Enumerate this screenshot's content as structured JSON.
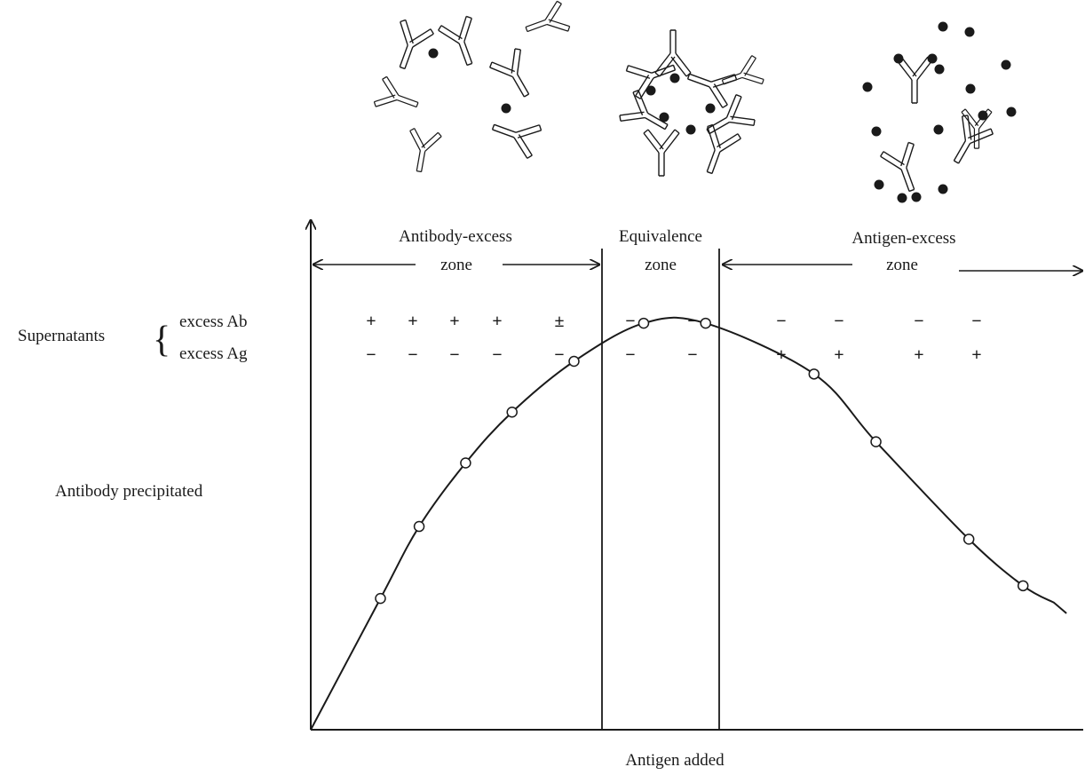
{
  "zones": [
    {
      "id": "antibody-excess",
      "line1": "Antibody-excess",
      "line2": "zone"
    },
    {
      "id": "equivalence",
      "line1": "Equivalence",
      "line2": "zone"
    },
    {
      "id": "antigen-excess",
      "line1": "Antigen-excess",
      "line2": "zone"
    }
  ],
  "supernatants": {
    "label": "Supernatants",
    "brace": "{",
    "rows": [
      {
        "label": "excess Ab",
        "signs": [
          "+",
          "+",
          "+",
          "+",
          "±",
          "−",
          "−",
          "−",
          "−",
          "−",
          "−"
        ]
      },
      {
        "label": "excess Ag",
        "signs": [
          "−",
          "−",
          "−",
          "−",
          "−",
          "−",
          "−",
          "+",
          "+",
          "+",
          "+"
        ]
      }
    ]
  },
  "axes": {
    "y_label": "Antibody precipitated",
    "x_label": "Antigen added"
  },
  "curve_points": [
    {
      "antigen": 0.0,
      "precipitate": 0.0
    },
    {
      "antigen": 0.09,
      "precipitate": 0.31
    },
    {
      "antigen": 0.14,
      "precipitate": 0.48
    },
    {
      "antigen": 0.2,
      "precipitate": 0.63
    },
    {
      "antigen": 0.26,
      "precipitate": 0.75
    },
    {
      "antigen": 0.34,
      "precipitate": 0.87
    },
    {
      "antigen": 0.43,
      "precipitate": 0.96
    },
    {
      "antigen": 0.51,
      "precipitate": 0.96
    },
    {
      "antigen": 0.65,
      "precipitate": 0.84
    },
    {
      "antigen": 0.73,
      "precipitate": 0.68
    },
    {
      "antigen": 0.85,
      "precipitate": 0.45
    },
    {
      "antigen": 0.92,
      "precipitate": 0.34
    },
    {
      "antigen": 0.96,
      "precipitate": 0.3
    }
  ],
  "markers_at": [
    1,
    2,
    3,
    4,
    5,
    6,
    7,
    8,
    9,
    10,
    11
  ],
  "colors": {
    "ink": "#1a1a1a",
    "background": "#ffffff"
  }
}
